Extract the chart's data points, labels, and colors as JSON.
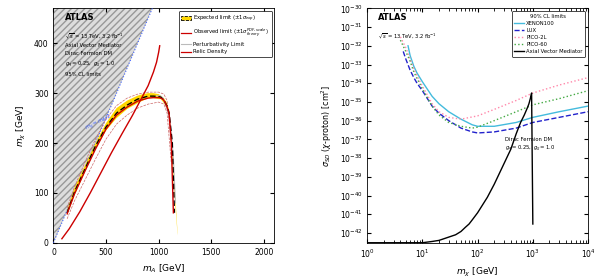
{
  "left": {
    "xlim": [
      0,
      2100
    ],
    "ylim": [
      0,
      470
    ],
    "xticks": [
      0,
      500,
      1000,
      1500,
      2000
    ],
    "yticks": [
      0,
      100,
      200,
      300,
      400
    ],
    "yellow_color": "#FFD700",
    "obs_color": "#CC0000",
    "relic_color": "#CC0000",
    "pert_color": "#BBBBBB",
    "exp_color": "#000000",
    "blue_color": "#4466FF",
    "hatch_color": "#BBBBBB"
  },
  "right": {
    "xenon_color": "#44BBDD",
    "lux_color": "#2222CC",
    "pico2l_color": "#FF88AA",
    "pico60_color": "#44AA44",
    "atlas_color": "#000000"
  }
}
